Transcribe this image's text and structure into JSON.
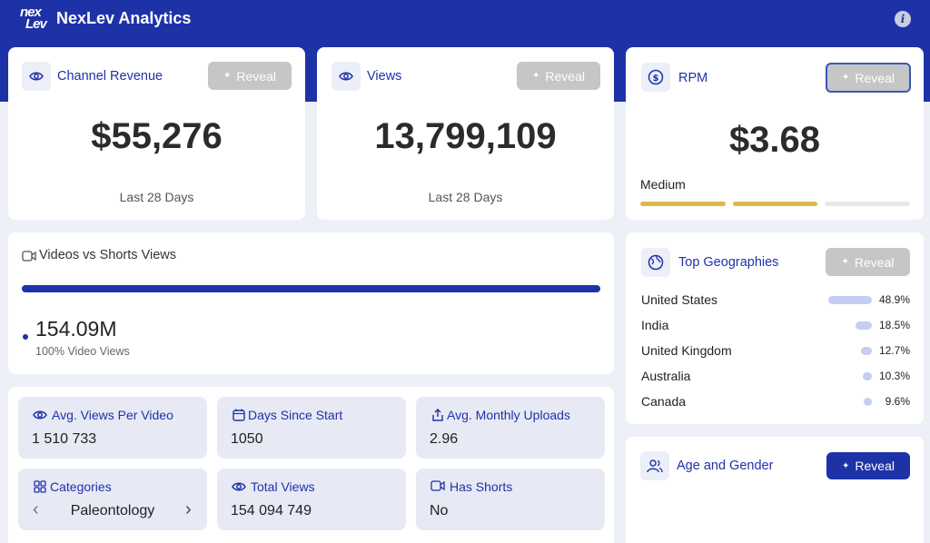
{
  "app": {
    "logo_text": "nexLev",
    "title": "NexLev Analytics",
    "info_icon": "i"
  },
  "colors": {
    "brand": "#1e32a8",
    "rpm_gold": "#ddb84b",
    "geo_bar": "#c5cdf4"
  },
  "reveal_label": "Reveal",
  "revenue": {
    "title": "Channel Revenue",
    "value": "$55,276",
    "period": "Last 28 Days"
  },
  "views": {
    "title": "Views",
    "value": "13,799,109",
    "period": "Last 28 Days"
  },
  "rpm": {
    "title": "RPM",
    "value": "$3.68",
    "level": "Medium",
    "level_segments_filled": 2,
    "level_segments_total": 3
  },
  "video_shorts": {
    "title": "Videos vs Shorts Views",
    "value": "154.09M",
    "caption": "100% Video Views",
    "video_share": 1.0
  },
  "geographies": {
    "title": "Top Geographies",
    "rows": [
      {
        "country": "United States",
        "pct": "48.9%",
        "share": 48.9
      },
      {
        "country": "India",
        "pct": "18.5%",
        "share": 18.5
      },
      {
        "country": "United Kingdom",
        "pct": "12.7%",
        "share": 12.7
      },
      {
        "country": "Australia",
        "pct": "10.3%",
        "share": 10.3
      },
      {
        "country": "Canada",
        "pct": "9.6%",
        "share": 9.6
      }
    ]
  },
  "age_gender": {
    "title": "Age and Gender"
  },
  "stats": {
    "avg_views": {
      "label": "Avg. Views Per Video",
      "value": "1 510 733"
    },
    "days_since": {
      "label": "Days Since Start",
      "value": "1050"
    },
    "avg_uploads": {
      "label": "Avg. Monthly Uploads",
      "value": "2.96"
    },
    "categories": {
      "label": "Categories",
      "value": "Paleontology",
      "prev": "‹",
      "next": "›"
    },
    "total_views": {
      "label": "Total Views",
      "value": "154 094 749"
    },
    "has_shorts": {
      "label": "Has Shorts",
      "value": "No"
    }
  }
}
